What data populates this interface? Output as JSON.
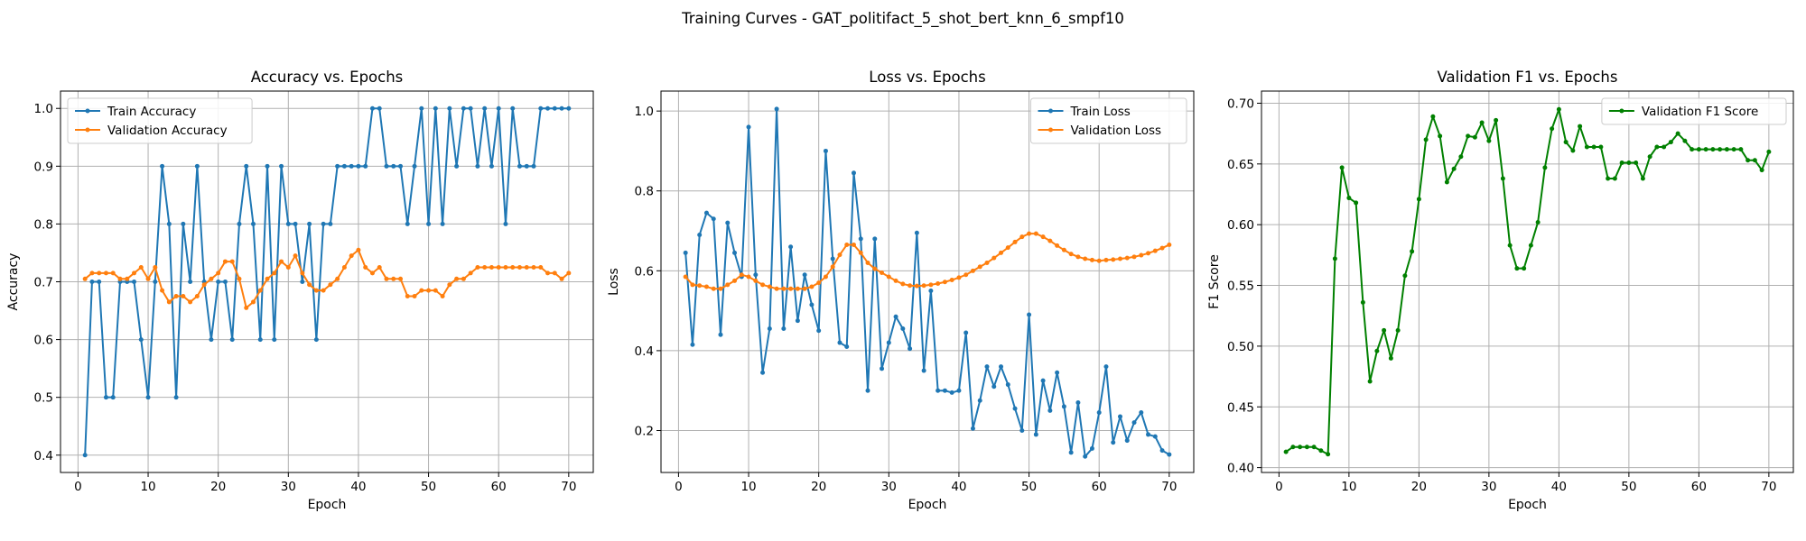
{
  "suptitle": "Training Curves - GAT_politifact_5_shot_bert_knn_6_smpf10",
  "colors": {
    "blue": "#1f77b4",
    "orange": "#ff7f0e",
    "green": "#008000"
  },
  "chart_data": [
    {
      "type": "line",
      "title": "Accuracy vs. Epochs",
      "xlabel": "Epoch",
      "ylabel": "Accuracy",
      "grid": true,
      "legend": "upper-left",
      "xlim": [
        -2.5,
        73.5
      ],
      "ylim": [
        0.37,
        1.03
      ],
      "xticks": [
        0,
        10,
        20,
        30,
        40,
        50,
        60,
        70
      ],
      "yticks": [
        0.4,
        0.5,
        0.6,
        0.7,
        0.8,
        0.9,
        1.0
      ],
      "ytick_labels": [
        "0.4",
        "0.5",
        "0.6",
        "0.7",
        "0.8",
        "0.9",
        "1.0"
      ],
      "series": [
        {
          "name": "Train Accuracy",
          "color": "#1f77b4",
          "values": [
            0.4,
            0.7,
            0.7,
            0.5,
            0.5,
            0.7,
            0.7,
            0.7,
            0.6,
            0.5,
            0.7,
            0.9,
            0.8,
            0.5,
            0.8,
            0.7,
            0.9,
            0.7,
            0.6,
            0.7,
            0.7,
            0.6,
            0.8,
            0.9,
            0.8,
            0.6,
            0.9,
            0.6,
            0.9,
            0.8,
            0.8,
            0.7,
            0.8,
            0.6,
            0.8,
            0.8,
            0.9,
            0.9,
            0.9,
            0.9,
            0.9,
            1.0,
            1.0,
            0.9,
            0.9,
            0.9,
            0.8,
            0.9,
            1.0,
            0.8,
            1.0,
            0.8,
            1.0,
            0.9,
            1.0,
            1.0,
            0.9,
            1.0,
            0.9,
            1.0,
            0.8,
            1.0,
            0.9,
            0.9,
            0.9,
            1.0,
            1.0,
            1.0,
            1.0,
            1.0
          ]
        },
        {
          "name": "Validation Accuracy",
          "color": "#ff7f0e",
          "values": [
            0.705,
            0.715,
            0.715,
            0.715,
            0.715,
            0.705,
            0.705,
            0.715,
            0.725,
            0.705,
            0.725,
            0.685,
            0.665,
            0.675,
            0.675,
            0.665,
            0.675,
            0.695,
            0.705,
            0.715,
            0.735,
            0.735,
            0.705,
            0.655,
            0.665,
            0.685,
            0.705,
            0.715,
            0.735,
            0.725,
            0.745,
            0.715,
            0.695,
            0.685,
            0.685,
            0.695,
            0.705,
            0.725,
            0.745,
            0.755,
            0.725,
            0.715,
            0.725,
            0.705,
            0.705,
            0.705,
            0.675,
            0.675,
            0.685,
            0.685,
            0.685,
            0.675,
            0.695,
            0.705,
            0.705,
            0.715,
            0.725,
            0.725,
            0.725,
            0.725,
            0.725,
            0.725,
            0.725,
            0.725,
            0.725,
            0.725,
            0.715,
            0.715,
            0.705,
            0.715
          ]
        }
      ]
    },
    {
      "type": "line",
      "title": "Loss vs. Epochs",
      "xlabel": "Epoch",
      "ylabel": "Loss",
      "grid": true,
      "legend": "upper-right",
      "xlim": [
        -2.5,
        73.5
      ],
      "ylim": [
        0.095,
        1.05
      ],
      "xticks": [
        0,
        10,
        20,
        30,
        40,
        50,
        60,
        70
      ],
      "yticks": [
        0.2,
        0.4,
        0.6,
        0.8,
        1.0
      ],
      "ytick_labels": [
        "0.2",
        "0.4",
        "0.6",
        "0.8",
        "1.0"
      ],
      "series": [
        {
          "name": "Train Loss",
          "color": "#1f77b4",
          "values": [
            0.645,
            0.415,
            0.69,
            0.745,
            0.73,
            0.44,
            0.72,
            0.645,
            0.585,
            0.96,
            0.59,
            0.345,
            0.455,
            1.005,
            0.455,
            0.66,
            0.475,
            0.59,
            0.515,
            0.45,
            0.9,
            0.63,
            0.42,
            0.41,
            0.845,
            0.68,
            0.3,
            0.68,
            0.355,
            0.42,
            0.485,
            0.455,
            0.405,
            0.695,
            0.35,
            0.55,
            0.3,
            0.3,
            0.295,
            0.3,
            0.445,
            0.205,
            0.275,
            0.36,
            0.31,
            0.36,
            0.315,
            0.255,
            0.2,
            0.49,
            0.19,
            0.325,
            0.25,
            0.345,
            0.26,
            0.145,
            0.27,
            0.135,
            0.155,
            0.245,
            0.36,
            0.17,
            0.235,
            0.175,
            0.22,
            0.245,
            0.19,
            0.185,
            0.15,
            0.14
          ]
        },
        {
          "name": "Validation Loss",
          "color": "#ff7f0e",
          "values": [
            0.585,
            0.565,
            0.563,
            0.56,
            0.555,
            0.555,
            0.565,
            0.575,
            0.59,
            0.585,
            0.575,
            0.565,
            0.56,
            0.555,
            0.555,
            0.555,
            0.555,
            0.555,
            0.56,
            0.57,
            0.585,
            0.61,
            0.64,
            0.665,
            0.665,
            0.645,
            0.62,
            0.605,
            0.595,
            0.585,
            0.575,
            0.567,
            0.563,
            0.562,
            0.563,
            0.565,
            0.568,
            0.572,
            0.577,
            0.583,
            0.59,
            0.6,
            0.61,
            0.62,
            0.632,
            0.645,
            0.658,
            0.672,
            0.685,
            0.693,
            0.693,
            0.685,
            0.675,
            0.663,
            0.652,
            0.642,
            0.635,
            0.63,
            0.627,
            0.625,
            0.627,
            0.628,
            0.63,
            0.632,
            0.635,
            0.639,
            0.644,
            0.65,
            0.657,
            0.665
          ]
        }
      ]
    },
    {
      "type": "line",
      "title": "Validation F1 vs. Epochs",
      "xlabel": "Epoch",
      "ylabel": "F1 Score",
      "grid": true,
      "legend": "upper-right",
      "xlim": [
        -2.5,
        73.5
      ],
      "ylim": [
        0.396,
        0.71
      ],
      "xticks": [
        0,
        10,
        20,
        30,
        40,
        50,
        60,
        70
      ],
      "yticks": [
        0.4,
        0.45,
        0.5,
        0.55,
        0.6,
        0.65,
        0.7
      ],
      "ytick_labels": [
        "0.40",
        "0.45",
        "0.50",
        "0.55",
        "0.60",
        "0.65",
        "0.70"
      ],
      "series": [
        {
          "name": "Validation F1 Score",
          "color": "#008000",
          "values": [
            0.413,
            0.417,
            0.417,
            0.417,
            0.417,
            0.414,
            0.411,
            0.572,
            0.647,
            0.622,
            0.618,
            0.536,
            0.471,
            0.496,
            0.513,
            0.49,
            0.513,
            0.558,
            0.578,
            0.621,
            0.67,
            0.689,
            0.673,
            0.635,
            0.646,
            0.656,
            0.673,
            0.672,
            0.684,
            0.669,
            0.686,
            0.638,
            0.583,
            0.564,
            0.564,
            0.583,
            0.602,
            0.647,
            0.679,
            0.695,
            0.668,
            0.661,
            0.681,
            0.664,
            0.664,
            0.664,
            0.638,
            0.638,
            0.651,
            0.651,
            0.651,
            0.638,
            0.656,
            0.664,
            0.664,
            0.668,
            0.675,
            0.669,
            0.662,
            0.662,
            0.662,
            0.662,
            0.662,
            0.662,
            0.662,
            0.662,
            0.653,
            0.653,
            0.645,
            0.66
          ]
        }
      ]
    }
  ]
}
